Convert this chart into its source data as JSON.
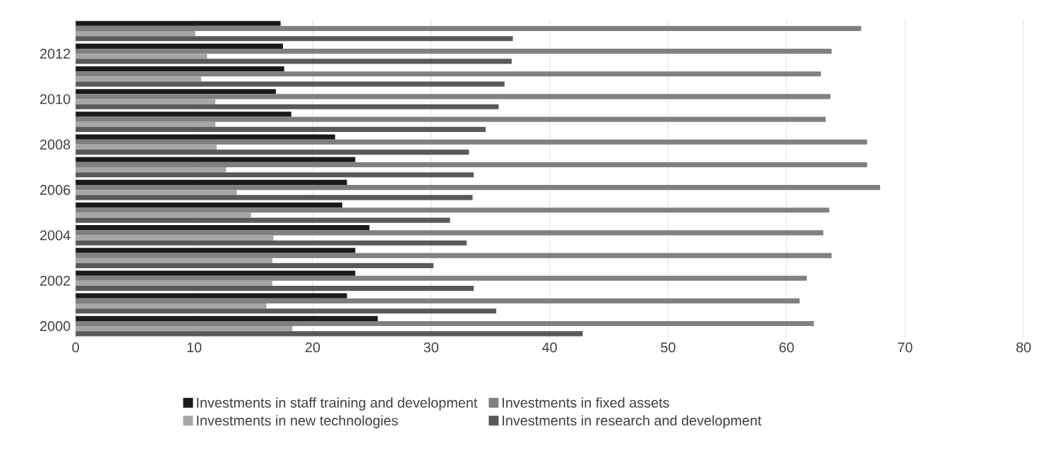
{
  "chart_data": {
    "type": "bar",
    "orientation": "horizontal",
    "categories": [
      null,
      "2012",
      null,
      "2010",
      null,
      "2008",
      null,
      "2006",
      null,
      "2004",
      null,
      "2002",
      null,
      "2000"
    ],
    "series": [
      {
        "name": "Investments in staff training and development",
        "color": "#1a1a1a",
        "values": [
          17.3,
          17.5,
          17.6,
          16.9,
          18.2,
          21.9,
          23.6,
          22.9,
          22.5,
          24.8,
          23.6,
          23.6,
          22.9,
          25.5
        ]
      },
      {
        "name": "Investments in fixed assets",
        "color": "#808080",
        "values": [
          66.3,
          63.8,
          62.9,
          63.7,
          63.3,
          66.8,
          66.8,
          67.9,
          63.6,
          63.1,
          63.8,
          61.7,
          61.1,
          62.3
        ]
      },
      {
        "name": "Investments in new technologies",
        "color": "#a6a6a6",
        "values": [
          10.1,
          11.1,
          10.6,
          11.8,
          11.8,
          11.9,
          12.7,
          13.6,
          14.8,
          16.7,
          16.6,
          16.6,
          16.1,
          18.3
        ]
      },
      {
        "name": "Investments in research and development",
        "color": "#595959",
        "values": [
          36.9,
          36.8,
          36.2,
          35.7,
          34.6,
          33.2,
          33.6,
          33.5,
          31.6,
          33.0,
          30.2,
          33.6,
          35.5,
          42.8
        ]
      }
    ],
    "xlim": [
      0,
      80
    ],
    "xticks": [
      0,
      10,
      20,
      30,
      40,
      50,
      60,
      70,
      80
    ],
    "grid": "x",
    "legend": "bottom"
  }
}
